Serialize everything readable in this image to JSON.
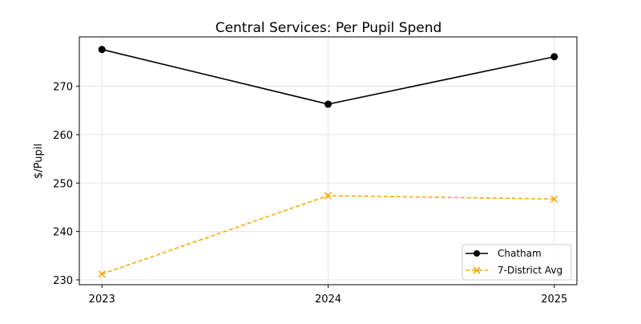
{
  "chart_data": {
    "type": "line",
    "title": "Central Services: Per Pupil Spend",
    "xlabel": "",
    "ylabel": "$/Pupil",
    "x": [
      2023,
      2024,
      2025
    ],
    "xticks": [
      "2023",
      "2024",
      "2025"
    ],
    "yticks": [
      230,
      240,
      250,
      260,
      270
    ],
    "xlim": [
      2022.9,
      2025.1
    ],
    "ylim": [
      229.0,
      280.2
    ],
    "grid": true,
    "legend": "bottom-right",
    "series": [
      {
        "name": "Chatham",
        "values": [
          277.6,
          266.3,
          276.1
        ],
        "color": "#000000",
        "marker": "circle",
        "dash": "solid"
      },
      {
        "name": "7-District Avg",
        "values": [
          231.2,
          247.4,
          246.7
        ],
        "color": "#FFA500",
        "marker": "x",
        "dash": "dashed"
      }
    ]
  }
}
